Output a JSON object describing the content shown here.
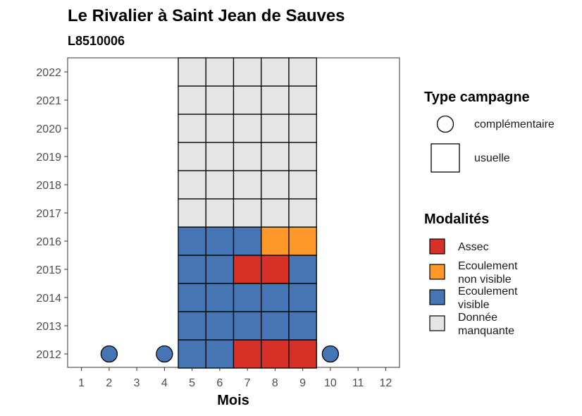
{
  "chart_data": {
    "type": "heatmap",
    "title": "Le Rivalier à Saint Jean de Sauves",
    "subtitle": "L8510006",
    "xlabel": "Mois",
    "ylabel": "",
    "x_ticks": [
      "1",
      "2",
      "3",
      "4",
      "5",
      "6",
      "7",
      "8",
      "9",
      "10",
      "11",
      "12"
    ],
    "y_ticks": [
      "2012",
      "2013",
      "2014",
      "2015",
      "2016",
      "2017",
      "2018",
      "2019",
      "2020",
      "2021",
      "2022"
    ],
    "grid": false,
    "legend_position": "right",
    "legend_shape_title": "Type campagne",
    "legend_shapes": [
      {
        "label": "complémentaire",
        "shape": "circle"
      },
      {
        "label": "usuelle",
        "shape": "square"
      }
    ],
    "legend_color_title": "Modalités",
    "modalites": [
      {
        "key": "assec",
        "label_lines": [
          "Assec"
        ],
        "color": "#d73027"
      },
      {
        "key": "nonvisible",
        "label_lines": [
          "Ecoulement",
          "non visible"
        ],
        "color": "#fe9929"
      },
      {
        "key": "visible",
        "label_lines": [
          "Ecoulement",
          "visible"
        ],
        "color": "#4575b4"
      },
      {
        "key": "manquante",
        "label_lines": [
          "Donnée",
          "manquante"
        ],
        "color": "#e5e5e5"
      }
    ],
    "cells": [
      {
        "year": 2012,
        "month": 5,
        "shape": "square",
        "modalite": "visible"
      },
      {
        "year": 2012,
        "month": 6,
        "shape": "square",
        "modalite": "visible"
      },
      {
        "year": 2012,
        "month": 7,
        "shape": "square",
        "modalite": "assec"
      },
      {
        "year": 2012,
        "month": 8,
        "shape": "square",
        "modalite": "assec"
      },
      {
        "year": 2012,
        "month": 9,
        "shape": "square",
        "modalite": "assec"
      },
      {
        "year": 2012,
        "month": 2,
        "shape": "circle",
        "modalite": "visible"
      },
      {
        "year": 2012,
        "month": 4,
        "shape": "circle",
        "modalite": "visible"
      },
      {
        "year": 2012,
        "month": 10,
        "shape": "circle",
        "modalite": "visible"
      },
      {
        "year": 2013,
        "month": 5,
        "shape": "square",
        "modalite": "visible"
      },
      {
        "year": 2013,
        "month": 6,
        "shape": "square",
        "modalite": "visible"
      },
      {
        "year": 2013,
        "month": 7,
        "shape": "square",
        "modalite": "visible"
      },
      {
        "year": 2013,
        "month": 8,
        "shape": "square",
        "modalite": "visible"
      },
      {
        "year": 2013,
        "month": 9,
        "shape": "square",
        "modalite": "visible"
      },
      {
        "year": 2014,
        "month": 5,
        "shape": "square",
        "modalite": "visible"
      },
      {
        "year": 2014,
        "month": 6,
        "shape": "square",
        "modalite": "visible"
      },
      {
        "year": 2014,
        "month": 7,
        "shape": "square",
        "modalite": "visible"
      },
      {
        "year": 2014,
        "month": 8,
        "shape": "square",
        "modalite": "visible"
      },
      {
        "year": 2014,
        "month": 9,
        "shape": "square",
        "modalite": "visible"
      },
      {
        "year": 2015,
        "month": 5,
        "shape": "square",
        "modalite": "visible"
      },
      {
        "year": 2015,
        "month": 6,
        "shape": "square",
        "modalite": "visible"
      },
      {
        "year": 2015,
        "month": 7,
        "shape": "square",
        "modalite": "assec"
      },
      {
        "year": 2015,
        "month": 8,
        "shape": "square",
        "modalite": "assec"
      },
      {
        "year": 2015,
        "month": 9,
        "shape": "square",
        "modalite": "visible"
      },
      {
        "year": 2016,
        "month": 5,
        "shape": "square",
        "modalite": "visible"
      },
      {
        "year": 2016,
        "month": 6,
        "shape": "square",
        "modalite": "visible"
      },
      {
        "year": 2016,
        "month": 7,
        "shape": "square",
        "modalite": "visible"
      },
      {
        "year": 2016,
        "month": 8,
        "shape": "square",
        "modalite": "nonvisible"
      },
      {
        "year": 2016,
        "month": 9,
        "shape": "square",
        "modalite": "nonvisible"
      },
      {
        "year": 2017,
        "month": 5,
        "shape": "square",
        "modalite": "manquante"
      },
      {
        "year": 2017,
        "month": 6,
        "shape": "square",
        "modalite": "manquante"
      },
      {
        "year": 2017,
        "month": 7,
        "shape": "square",
        "modalite": "manquante"
      },
      {
        "year": 2017,
        "month": 8,
        "shape": "square",
        "modalite": "manquante"
      },
      {
        "year": 2017,
        "month": 9,
        "shape": "square",
        "modalite": "manquante"
      },
      {
        "year": 2018,
        "month": 5,
        "shape": "square",
        "modalite": "manquante"
      },
      {
        "year": 2018,
        "month": 6,
        "shape": "square",
        "modalite": "manquante"
      },
      {
        "year": 2018,
        "month": 7,
        "shape": "square",
        "modalite": "manquante"
      },
      {
        "year": 2018,
        "month": 8,
        "shape": "square",
        "modalite": "manquante"
      },
      {
        "year": 2018,
        "month": 9,
        "shape": "square",
        "modalite": "manquante"
      },
      {
        "year": 2019,
        "month": 5,
        "shape": "square",
        "modalite": "manquante"
      },
      {
        "year": 2019,
        "month": 6,
        "shape": "square",
        "modalite": "manquante"
      },
      {
        "year": 2019,
        "month": 7,
        "shape": "square",
        "modalite": "manquante"
      },
      {
        "year": 2019,
        "month": 8,
        "shape": "square",
        "modalite": "manquante"
      },
      {
        "year": 2019,
        "month": 9,
        "shape": "square",
        "modalite": "manquante"
      },
      {
        "year": 2020,
        "month": 5,
        "shape": "square",
        "modalite": "manquante"
      },
      {
        "year": 2020,
        "month": 6,
        "shape": "square",
        "modalite": "manquante"
      },
      {
        "year": 2020,
        "month": 7,
        "shape": "square",
        "modalite": "manquante"
      },
      {
        "year": 2020,
        "month": 8,
        "shape": "square",
        "modalite": "manquante"
      },
      {
        "year": 2020,
        "month": 9,
        "shape": "square",
        "modalite": "manquante"
      },
      {
        "year": 2021,
        "month": 5,
        "shape": "square",
        "modalite": "manquante"
      },
      {
        "year": 2021,
        "month": 6,
        "shape": "square",
        "modalite": "manquante"
      },
      {
        "year": 2021,
        "month": 7,
        "shape": "square",
        "modalite": "manquante"
      },
      {
        "year": 2021,
        "month": 8,
        "shape": "square",
        "modalite": "manquante"
      },
      {
        "year": 2021,
        "month": 9,
        "shape": "square",
        "modalite": "manquante"
      },
      {
        "year": 2022,
        "month": 5,
        "shape": "square",
        "modalite": "manquante"
      },
      {
        "year": 2022,
        "month": 6,
        "shape": "square",
        "modalite": "manquante"
      },
      {
        "year": 2022,
        "month": 7,
        "shape": "square",
        "modalite": "manquante"
      },
      {
        "year": 2022,
        "month": 8,
        "shape": "square",
        "modalite": "manquante"
      },
      {
        "year": 2022,
        "month": 9,
        "shape": "square",
        "modalite": "manquante"
      }
    ]
  }
}
